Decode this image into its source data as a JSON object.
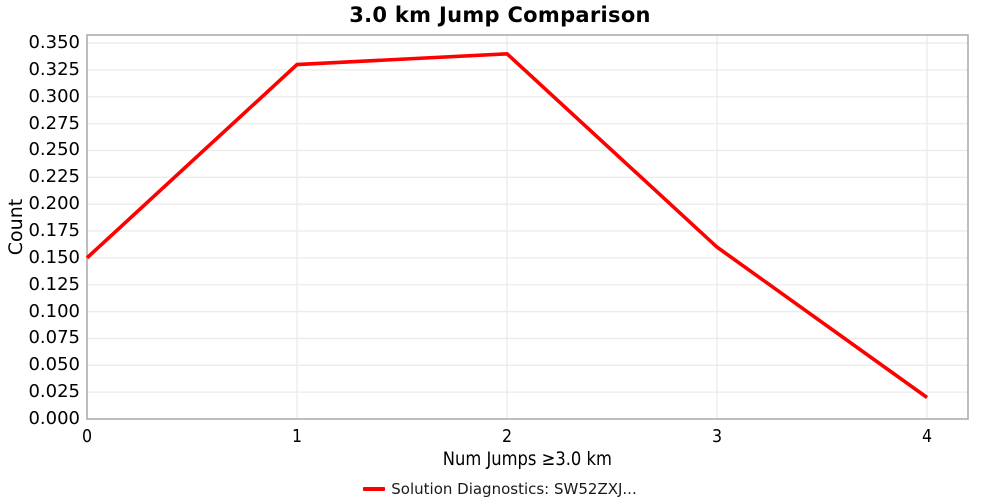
{
  "chart_data": {
    "type": "line",
    "title": "3.0 km Jump Comparison",
    "xlabel": "Num Jumps ≥3.0 km",
    "ylabel": "Count",
    "x": [
      0,
      1,
      2,
      3,
      4
    ],
    "series": [
      {
        "name": "Solution Diagnostics: SW52ZXJ...",
        "color": "#ff0000",
        "values": [
          0.15,
          0.33,
          0.34,
          0.16,
          0.02
        ]
      }
    ],
    "xticks": [
      0,
      1,
      2,
      3,
      4
    ],
    "ytick_min": 0.0,
    "ytick_max": 0.35,
    "ytick_step": 0.025,
    "ytick_decimals": 3,
    "xlim": [
      0,
      4.195
    ],
    "ylim": [
      0,
      0.3575
    ],
    "grid": true,
    "legend_position": "bottom-center",
    "colors": {
      "line": "#ff0000",
      "grid": "#ebebeb",
      "axis_border": "#a8a8a8",
      "text": "#000000",
      "background": "#ffffff"
    }
  }
}
